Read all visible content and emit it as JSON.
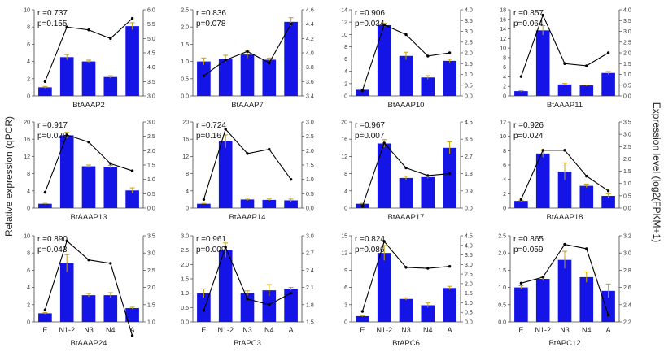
{
  "figure": {
    "left_axis_label": "Relative expression (qPCR)",
    "right_axis_label": "Expression level (log2(FPKM+1)"
  },
  "colors": {
    "bar": "#1414e6",
    "error": "#c8a000",
    "line": "#000000",
    "axis": "#444444"
  },
  "chart_data": [
    {
      "type": "bar+line",
      "title": "BtAAAP2",
      "r_text": "r =0.737",
      "p_text": "p=0.155",
      "categories": [
        "E",
        "N1-2",
        "N3",
        "N4",
        "A"
      ],
      "bar_values": [
        1.0,
        4.5,
        4.0,
        2.2,
        8.1
      ],
      "bar_errors": [
        0.1,
        0.3,
        0.15,
        0.15,
        0.4
      ],
      "left_ylim": [
        0,
        10
      ],
      "left_ticks": [
        "0",
        "2",
        "4",
        "6",
        "8",
        "10"
      ],
      "line_values": [
        3.5,
        5.4,
        5.3,
        5.0,
        5.7
      ],
      "right_ylim": [
        3.0,
        6.0
      ],
      "right_ticks": [
        "3.0",
        "3.5",
        "4.0",
        "4.5",
        "5.0",
        "5.5",
        "6.0"
      ]
    },
    {
      "type": "bar+line",
      "title": "BtAAAP7",
      "r_text": "r =0.836",
      "p_text": "p=0.078",
      "categories": [
        "E",
        "N1-2",
        "N3",
        "N4",
        "A"
      ],
      "bar_values": [
        1.0,
        1.08,
        1.2,
        1.05,
        2.15
      ],
      "bar_errors": [
        0.1,
        0.1,
        0.1,
        0.05,
        0.12
      ],
      "left_ylim": [
        0,
        2.5
      ],
      "left_ticks": [
        "0.0",
        "0.5",
        "1.0",
        "1.5",
        "2.0",
        "2.5"
      ],
      "line_values": [
        3.68,
        3.9,
        4.02,
        3.86,
        4.4
      ],
      "right_ylim": [
        3.4,
        4.6
      ],
      "right_ticks": [
        "3.4",
        "3.6",
        "3.8",
        "4.0",
        "4.2",
        "4.4",
        "4.6"
      ]
    },
    {
      "type": "bar+line",
      "title": "BtAAAP10",
      "r_text": "r =0.906",
      "p_text": "p=0.034",
      "categories": [
        "E",
        "N1-2",
        "N3",
        "N4",
        "A"
      ],
      "bar_values": [
        1.0,
        11.5,
        6.5,
        3.0,
        5.7
      ],
      "bar_errors": [
        0.1,
        0.3,
        0.6,
        0.3,
        0.25
      ],
      "left_ylim": [
        0,
        14
      ],
      "left_ticks": [
        "0",
        "2",
        "4",
        "6",
        "8",
        "10",
        "12",
        "14"
      ],
      "line_values": [
        0.25,
        3.3,
        2.85,
        1.85,
        2.0
      ],
      "right_ylim": [
        0,
        4.0
      ],
      "right_ticks": [
        "0.0",
        "0.5",
        "1.0",
        "1.5",
        "2.0",
        "2.5",
        "3.0",
        "3.5",
        "4.0"
      ]
    },
    {
      "type": "bar+line",
      "title": "BtAAAP11",
      "r_text": "r =0.857",
      "p_text": "p=0.064",
      "categories": [
        "E",
        "N1-2",
        "N3",
        "N4",
        "A"
      ],
      "bar_values": [
        1.0,
        13.7,
        2.4,
        2.2,
        4.8
      ],
      "bar_errors": [
        0.1,
        1.0,
        0.2,
        0.1,
        0.3
      ],
      "left_ylim": [
        0,
        18
      ],
      "left_ticks": [
        "0",
        "2",
        "4",
        "6",
        "8",
        "10",
        "12",
        "14",
        "16",
        "18"
      ],
      "line_values": [
        0.9,
        3.75,
        1.5,
        1.4,
        2.0
      ],
      "right_ylim": [
        0,
        4.0
      ],
      "right_ticks": [
        "0.0",
        "0.5",
        "1.0",
        "1.5",
        "2.0",
        "2.5",
        "3.0",
        "3.5",
        "4.0"
      ]
    },
    {
      "type": "bar+line",
      "title": "BtAAAP13",
      "r_text": "r =0.917",
      "p_text": "p=0.028",
      "categories": [
        "E",
        "N1-2",
        "N3",
        "N4",
        "A"
      ],
      "bar_values": [
        1.0,
        16.9,
        9.7,
        9.6,
        4.1
      ],
      "bar_errors": [
        0.1,
        0.7,
        0.3,
        0.3,
        0.6
      ],
      "left_ylim": [
        0,
        20
      ],
      "left_ticks": [
        "0",
        "4",
        "8",
        "12",
        "16",
        "20"
      ],
      "line_values": [
        0.55,
        2.55,
        2.3,
        1.55,
        1.3
      ],
      "right_ylim": [
        0,
        3.0
      ],
      "right_ticks": [
        "0.0",
        "0.5",
        "1.0",
        "1.5",
        "2.0",
        "2.5",
        "3.0"
      ]
    },
    {
      "type": "bar+line",
      "title": "BtAAAP14",
      "r_text": "r =0.724",
      "p_text": "p=0.167",
      "categories": [
        "E",
        "N1-2",
        "N3",
        "N4",
        "A"
      ],
      "bar_values": [
        1.0,
        15.5,
        2.0,
        1.9,
        1.8
      ],
      "bar_errors": [
        0.1,
        1.5,
        0.3,
        0.2,
        0.3
      ],
      "left_ylim": [
        0,
        20
      ],
      "left_ticks": [
        "0",
        "4",
        "8",
        "12",
        "16",
        "20"
      ],
      "line_values": [
        0.3,
        2.75,
        1.9,
        2.05,
        1.0
      ],
      "right_ylim": [
        0,
        3.0
      ],
      "right_ticks": [
        "0.0",
        "0.5",
        "1.0",
        "1.5",
        "2.0",
        "2.5",
        "3.0"
      ]
    },
    {
      "type": "bar+line",
      "title": "BtAAAP17",
      "r_text": "r =0.967",
      "p_text": "p=0.007",
      "categories": [
        "E",
        "N1-2",
        "N3",
        "N4",
        "A"
      ],
      "bar_values": [
        1.0,
        15.0,
        7.0,
        7.2,
        14.0
      ],
      "bar_errors": [
        0.1,
        0.9,
        0.4,
        0.3,
        1.4
      ],
      "left_ylim": [
        0,
        20
      ],
      "left_ticks": [
        "0",
        "4",
        "8",
        "12",
        "16",
        "20"
      ],
      "line_values": [
        0.1,
        3.4,
        2.1,
        1.7,
        1.8
      ],
      "right_ylim": [
        0,
        4.5
      ],
      "right_ticks": [
        "0.0",
        "0.9",
        "1.8",
        "2.7",
        "3.6",
        "4.5"
      ]
    },
    {
      "type": "bar+line",
      "title": "BtAAAP18",
      "r_text": "r =0.926",
      "p_text": "p=0.024",
      "categories": [
        "E",
        "N1-2",
        "N3",
        "N4",
        "A"
      ],
      "bar_values": [
        1.0,
        7.6,
        5.1,
        3.1,
        1.7
      ],
      "bar_errors": [
        0.1,
        0.5,
        1.2,
        0.25,
        0.3
      ],
      "left_ylim": [
        0,
        12
      ],
      "left_ticks": [
        "0",
        "2",
        "4",
        "6",
        "8",
        "10",
        "12"
      ],
      "line_values": [
        0.35,
        2.35,
        2.35,
        1.3,
        0.7
      ],
      "right_ylim": [
        0,
        3.5
      ],
      "right_ticks": [
        "0.0",
        "0.5",
        "1.0",
        "1.5",
        "2.0",
        "2.5",
        "3.0",
        "3.5"
      ]
    },
    {
      "type": "bar+line",
      "title": "BtAAAP24",
      "r_text": "r =0.890",
      "p_text": "p=0.043",
      "categories": [
        "E",
        "N1-2",
        "N3",
        "N4",
        "A"
      ],
      "bar_values": [
        1.0,
        6.8,
        3.1,
        3.1,
        1.6
      ],
      "bar_errors": [
        0.1,
        1.0,
        0.2,
        0.3,
        0.1
      ],
      "left_ylim": [
        0,
        10
      ],
      "left_ticks": [
        "0",
        "2",
        "4",
        "6",
        "8",
        "10"
      ],
      "line_values": [
        1.35,
        3.35,
        2.8,
        2.7,
        0.6
      ],
      "right_ylim": [
        1.0,
        3.5
      ],
      "right_ticks": [
        "1.0",
        "1.5",
        "2.0",
        "2.5",
        "3.0",
        "3.5"
      ]
    },
    {
      "type": "bar+line",
      "title": "BtAPC3",
      "r_text": "r =0.961",
      "p_text": "p=0.009",
      "categories": [
        "E",
        "N1-2",
        "N3",
        "N4",
        "A"
      ],
      "bar_values": [
        1.0,
        2.5,
        1.0,
        1.1,
        1.15
      ],
      "bar_errors": [
        0.15,
        0.25,
        0.08,
        0.2,
        0.05
      ],
      "left_ylim": [
        0,
        3.0
      ],
      "left_ticks": [
        "0.0",
        "0.5",
        "1.0",
        "1.5",
        "2.0",
        "2.5",
        "3.0"
      ],
      "line_values": [
        1.7,
        2.8,
        1.9,
        1.8,
        2.0
      ],
      "right_ylim": [
        1.5,
        3.0
      ],
      "right_ticks": [
        "1.5",
        "1.8",
        "2.1",
        "2.4",
        "2.7",
        "3.0"
      ]
    },
    {
      "type": "bar+line",
      "title": "BtAPC6",
      "r_text": "r =0.824",
      "p_text": "p=0.086",
      "categories": [
        "E",
        "N1-2",
        "N3",
        "N4",
        "A"
      ],
      "bar_values": [
        1.0,
        12.0,
        4.0,
        2.9,
        5.9
      ],
      "bar_errors": [
        0.1,
        1.3,
        0.2,
        0.4,
        0.3
      ],
      "left_ylim": [
        0,
        15
      ],
      "left_ticks": [
        "0",
        "3",
        "6",
        "9",
        "12",
        "15"
      ],
      "line_values": [
        0.55,
        4.2,
        2.85,
        2.8,
        2.9
      ],
      "right_ylim": [
        0,
        4.5
      ],
      "right_ticks": [
        "0.0",
        "0.5",
        "1.0",
        "1.5",
        "2.0",
        "2.5",
        "3.0",
        "3.5",
        "4.0",
        "4.5"
      ]
    },
    {
      "type": "bar+line",
      "title": "BtAPC12",
      "r_text": "r =0.865",
      "p_text": "p=0.059",
      "categories": [
        "E",
        "N1-2",
        "N3",
        "N4",
        "A"
      ],
      "bar_values": [
        1.0,
        1.25,
        1.8,
        1.3,
        0.9
      ],
      "bar_errors": [
        0.05,
        0.05,
        0.25,
        0.15,
        0.2
      ],
      "left_ylim": [
        0,
        2.5
      ],
      "left_ticks": [
        "0.0",
        "0.5",
        "1.0",
        "1.5",
        "2.0",
        "2.5"
      ],
      "line_values": [
        2.65,
        2.72,
        3.1,
        3.05,
        2.28
      ],
      "right_ylim": [
        2.2,
        3.2
      ],
      "right_ticks": [
        "2.2",
        "2.4",
        "2.6",
        "2.8",
        "3.0",
        "3.2"
      ]
    }
  ]
}
